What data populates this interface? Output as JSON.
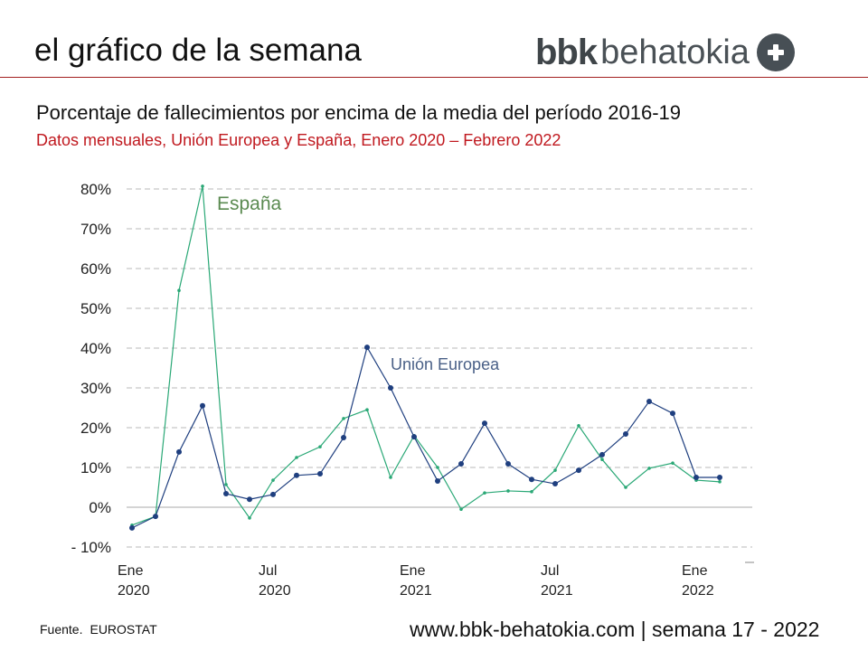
{
  "header": {
    "title": "el gráfico de la semana",
    "logo_bold": "bbk",
    "logo_light": "behatokia"
  },
  "footer": {
    "source_label": "Fuente.",
    "source_value": "EUROSTAT",
    "site": "www.bbk-behatokia.com | semana 17 - 2022"
  },
  "colors": {
    "eu": "#1f3f7f",
    "spain": "#2aa876",
    "rule": "#a32020",
    "subtitle": "#c0191f"
  },
  "chart_data": {
    "type": "line",
    "title": "Porcentaje de fallecimientos por encima de la media del período 2016-19",
    "subtitle": "Datos mensuales, Unión Europea y España, Enero 2020 – Febrero 2022",
    "xlabel": "",
    "ylabel": "",
    "ylim": [
      -10,
      80
    ],
    "yticks": [
      80,
      70,
      60,
      50,
      40,
      30,
      20,
      10,
      0,
      -10
    ],
    "ytick_labels": [
      "80%",
      "70%",
      "60%",
      "50%",
      "40%",
      "30%",
      "20%",
      "10%",
      "0%",
      "- 10%"
    ],
    "x": [
      "2020-01",
      "2020-02",
      "2020-03",
      "2020-04",
      "2020-05",
      "2020-06",
      "2020-07",
      "2020-08",
      "2020-09",
      "2020-10",
      "2020-11",
      "2020-12",
      "2021-01",
      "2021-02",
      "2021-03",
      "2021-04",
      "2021-05",
      "2021-06",
      "2021-07",
      "2021-08",
      "2021-09",
      "2021-10",
      "2021-11",
      "2021-12",
      "2022-01",
      "2022-02"
    ],
    "xticks": [
      {
        "index": 0,
        "line1": "Ene",
        "line2": "2020"
      },
      {
        "index": 6,
        "line1": "Jul",
        "line2": "2020"
      },
      {
        "index": 12,
        "line1": "Ene",
        "line2": "2021"
      },
      {
        "index": 18,
        "line1": "Jul",
        "line2": "2021"
      },
      {
        "index": 24,
        "line1": "Ene",
        "line2": "2022"
      }
    ],
    "grid": true,
    "series": [
      {
        "name": "Unión Europea",
        "label_index": 12,
        "label_value": 35,
        "values": [
          -5.2,
          -2.3,
          13.9,
          25.5,
          3.4,
          2.0,
          3.2,
          8.0,
          8.4,
          17.5,
          40.2,
          30.0,
          17.7,
          6.6,
          10.9,
          21.1,
          10.9,
          7.0,
          5.9,
          9.3,
          13.2,
          18.4,
          26.6,
          23.6,
          7.5,
          7.5
        ]
      },
      {
        "name": "España",
        "label_index": 4,
        "label_value": 75,
        "values": [
          -4.5,
          -2.3,
          54.5,
          80.7,
          5.7,
          -2.7,
          6.8,
          12.5,
          15.2,
          22.3,
          24.5,
          7.5,
          18.0,
          10.0,
          -0.5,
          3.6,
          4.1,
          3.9,
          9.3,
          20.5,
          12.0,
          5.0,
          9.8,
          11.1,
          6.8,
          6.4
        ]
      }
    ]
  }
}
